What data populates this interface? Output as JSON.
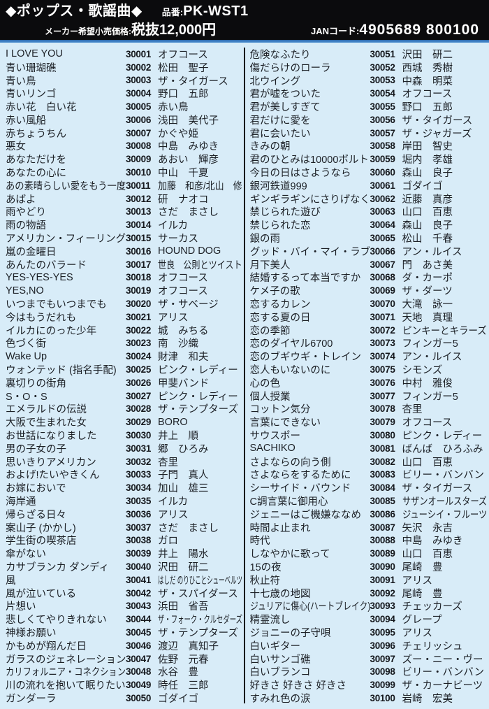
{
  "header": {
    "category": "◆ポップス・歌謡曲◆",
    "product_label": "品番:",
    "product_code": "PK-WST1",
    "price_label": "メーカー希望小売価格:",
    "price_value": "税抜12,000円",
    "jan_label": "JANコード:",
    "jan_value": "4905689 800100"
  },
  "colors": {
    "header_bg": "#0b0b0d",
    "page_bg": "#d8ecf8",
    "rule_blue": "#3a7cc2",
    "text": "#1c2026"
  },
  "songs": [
    {
      "title": "I LOVE YOU",
      "code": "30001",
      "artist": "オフコース"
    },
    {
      "title": "青い珊瑚礁",
      "code": "30002",
      "artist": "松田　聖子"
    },
    {
      "title": "青い鳥",
      "code": "30003",
      "artist": "ザ・タイガース"
    },
    {
      "title": "青いリンゴ",
      "code": "30004",
      "artist": "野口　五郎"
    },
    {
      "title": "赤い花　白い花",
      "code": "30005",
      "artist": "赤い鳥"
    },
    {
      "title": "赤い風船",
      "code": "30006",
      "artist": "浅田　美代子"
    },
    {
      "title": "赤ちょうちん",
      "code": "30007",
      "artist": "かぐや姫"
    },
    {
      "title": "悪女",
      "code": "30008",
      "artist": "中島　みゆき"
    },
    {
      "title": "あなただけを",
      "code": "30009",
      "artist": "あおい　輝彦"
    },
    {
      "title": "あなたの心に",
      "code": "30010",
      "artist": "中山　千夏"
    },
    {
      "title": "あの素晴らしい愛をもう一度",
      "code": "30011",
      "artist": "加藤　和彦/北山　修"
    },
    {
      "title": "あばよ",
      "code": "30012",
      "artist": "研　ナオコ"
    },
    {
      "title": "雨やどり",
      "code": "30013",
      "artist": "さだ　まさし"
    },
    {
      "title": "雨の物語",
      "code": "30014",
      "artist": "イルカ"
    },
    {
      "title": "アメリカン・フィーリング",
      "code": "30015",
      "artist": "サーカス"
    },
    {
      "title": "嵐の金曜日",
      "code": "30016",
      "artist": "HOUND DOG"
    },
    {
      "title": "あんたのバラード",
      "code": "30017",
      "artist": "世良　公則とツイスト"
    },
    {
      "title": "YES-YES-YES",
      "code": "30018",
      "artist": "オフコース"
    },
    {
      "title": "YES,NO",
      "code": "30019",
      "artist": "オフコース"
    },
    {
      "title": "いつまでもいつまでも",
      "code": "30020",
      "artist": "ザ・サベージ"
    },
    {
      "title": "今はもうだれも",
      "code": "30021",
      "artist": "アリス"
    },
    {
      "title": "イルカにのった少年",
      "code": "30022",
      "artist": "城　みちる"
    },
    {
      "title": "色づく街",
      "code": "30023",
      "artist": "南　沙織"
    },
    {
      "title": "Wake Up",
      "code": "30024",
      "artist": "財津　和夫"
    },
    {
      "title": "ウォンテッド (指名手配)",
      "code": "30025",
      "artist": "ピンク・レディー"
    },
    {
      "title": "裏切りの街角",
      "code": "30026",
      "artist": "甲斐バンド"
    },
    {
      "title": "S・O・S",
      "code": "30027",
      "artist": "ピンク・レディー"
    },
    {
      "title": "エメラルドの伝説",
      "code": "30028",
      "artist": "ザ・テンプターズ"
    },
    {
      "title": "大阪で生まれた女",
      "code": "30029",
      "artist": "BORO"
    },
    {
      "title": "お世話になりました",
      "code": "30030",
      "artist": "井上　順"
    },
    {
      "title": "男の子女の子",
      "code": "30031",
      "artist": "郷　ひろみ"
    },
    {
      "title": "思いきりアメリカン",
      "code": "30032",
      "artist": "杏里"
    },
    {
      "title": "およげ!たいやきくん",
      "code": "30033",
      "artist": "子門　真人"
    },
    {
      "title": "お嫁においで",
      "code": "30034",
      "artist": "加山　雄三"
    },
    {
      "title": "海岸通",
      "code": "30035",
      "artist": "イルカ"
    },
    {
      "title": "帰らざる日々",
      "code": "30036",
      "artist": "アリス"
    },
    {
      "title": "案山子 (かかし)",
      "code": "30037",
      "artist": "さだ　まさし"
    },
    {
      "title": "学生街の喫茶店",
      "code": "30038",
      "artist": "ガロ"
    },
    {
      "title": "傘がない",
      "code": "30039",
      "artist": "井上　陽水"
    },
    {
      "title": "カサブランカ ダンディ",
      "code": "30040",
      "artist": "沢田　研二"
    },
    {
      "title": "風",
      "code": "30041",
      "artist": "はしだ のりひことシューベルツ"
    },
    {
      "title": "風が泣いている",
      "code": "30042",
      "artist": "ザ・スパイダース"
    },
    {
      "title": "片想い",
      "code": "30043",
      "artist": "浜田　省吾"
    },
    {
      "title": "悲しくてやりきれない",
      "code": "30044",
      "artist": "ザ・フォーク・クルセダーズ"
    },
    {
      "title": "神様お願い",
      "code": "30045",
      "artist": "ザ・テンプターズ"
    },
    {
      "title": "かもめが翔んだ日",
      "code": "30046",
      "artist": "渡辺　真知子"
    },
    {
      "title": "ガラスのジェネレーション",
      "code": "30047",
      "artist": "佐野　元春"
    },
    {
      "title": "カリフォルニア・コネクション",
      "code": "30048",
      "artist": "水谷　豊"
    },
    {
      "title": "川の流れを抱いて眠りたい",
      "code": "30049",
      "artist": "時任　三郎"
    },
    {
      "title": "ガンダーラ",
      "code": "30050",
      "artist": "ゴダイゴ"
    },
    {
      "title": "危険なふたり",
      "code": "30051",
      "artist": "沢田　研二"
    },
    {
      "title": "傷だらけのローラ",
      "code": "30052",
      "artist": "西城　秀樹"
    },
    {
      "title": "北ウイング",
      "code": "30053",
      "artist": "中森　明菜"
    },
    {
      "title": "君が嘘をついた",
      "code": "30054",
      "artist": "オフコース"
    },
    {
      "title": "君が美しすぎて",
      "code": "30055",
      "artist": "野口　五郎"
    },
    {
      "title": "君だけに愛を",
      "code": "30056",
      "artist": "ザ・タイガース"
    },
    {
      "title": "君に会いたい",
      "code": "30057",
      "artist": "ザ・ジャガーズ"
    },
    {
      "title": "きみの朝",
      "code": "30058",
      "artist": "岸田　智史"
    },
    {
      "title": "君のひとみは10000ボルト",
      "code": "30059",
      "artist": "堀内　孝雄"
    },
    {
      "title": "今日の日はさようなら",
      "code": "30060",
      "artist": "森山　良子"
    },
    {
      "title": "銀河鉄道999",
      "code": "30061",
      "artist": "ゴダイゴ"
    },
    {
      "title": "ギンギラギンにさりげなく",
      "code": "30062",
      "artist": "近藤　真彦"
    },
    {
      "title": "禁じられた遊び",
      "code": "30063",
      "artist": "山口　百恵"
    },
    {
      "title": "禁じられた恋",
      "code": "30064",
      "artist": "森山　良子"
    },
    {
      "title": "銀の雨",
      "code": "30065",
      "artist": "松山　千春"
    },
    {
      "title": "グッド・バイ・マイ・ラブ",
      "code": "30066",
      "artist": "アン・ルイス"
    },
    {
      "title": "月下美人",
      "code": "30067",
      "artist": "門　あさ美"
    },
    {
      "title": "結婚するって本当ですか",
      "code": "30068",
      "artist": "ダ・カーポ"
    },
    {
      "title": "ケメ子の歌",
      "code": "30069",
      "artist": "ザ・ダーツ"
    },
    {
      "title": "恋するカレン",
      "code": "30070",
      "artist": "大滝　詠一"
    },
    {
      "title": "恋する夏の日",
      "code": "30071",
      "artist": "天地　真理"
    },
    {
      "title": "恋の季節",
      "code": "30072",
      "artist": "ピンキーとキラーズ"
    },
    {
      "title": "恋のダイヤル6700",
      "code": "30073",
      "artist": "フィンガー5"
    },
    {
      "title": "恋のブギウギ・トレイン",
      "code": "30074",
      "artist": "アン・ルイス"
    },
    {
      "title": "恋人もいないのに",
      "code": "30075",
      "artist": "シモンズ"
    },
    {
      "title": "心の色",
      "code": "30076",
      "artist": "中村　雅俊"
    },
    {
      "title": "個人授業",
      "code": "30077",
      "artist": "フィンガー5"
    },
    {
      "title": "コットン気分",
      "code": "30078",
      "artist": "杏里"
    },
    {
      "title": "言葉にできない",
      "code": "30079",
      "artist": "オフコース"
    },
    {
      "title": "サウスポー",
      "code": "30080",
      "artist": "ピンク・レディー"
    },
    {
      "title": "SACHIKO",
      "code": "30081",
      "artist": "ばんば　ひろふみ"
    },
    {
      "title": "さよならの向う側",
      "code": "30082",
      "artist": "山口　百恵"
    },
    {
      "title": "さよならをするために",
      "code": "30083",
      "artist": "ビリー・バンバン"
    },
    {
      "title": "シーサイド・バウンド",
      "code": "30084",
      "artist": "ザ・タイガース"
    },
    {
      "title": "C調言葉に御用心",
      "code": "30085",
      "artist": "サザンオールスターズ"
    },
    {
      "title": "ジェニーはご機嫌ななめ",
      "code": "30086",
      "artist": "ジューシイ・フルーツ"
    },
    {
      "title": "時間よ止まれ",
      "code": "30087",
      "artist": "矢沢　永吉"
    },
    {
      "title": "時代",
      "code": "30088",
      "artist": "中島　みゆき"
    },
    {
      "title": "しなやかに歌って",
      "code": "30089",
      "artist": "山口　百恵"
    },
    {
      "title": "15の夜",
      "code": "30090",
      "artist": "尾崎　豊"
    },
    {
      "title": "秋止符",
      "code": "30091",
      "artist": "アリス"
    },
    {
      "title": "十七歳の地図",
      "code": "30092",
      "artist": "尾崎　豊"
    },
    {
      "title": "ジュリアに傷心(ハートブレイク)",
      "code": "30093",
      "artist": "チェッカーズ"
    },
    {
      "title": "精霊流し",
      "code": "30094",
      "artist": "グレープ"
    },
    {
      "title": "ジョニーの子守唄",
      "code": "30095",
      "artist": "アリス"
    },
    {
      "title": "白いギター",
      "code": "30096",
      "artist": "チェリッシュ"
    },
    {
      "title": "白いサンゴ礁",
      "code": "30097",
      "artist": "ズー・ニー・ヴー"
    },
    {
      "title": "白いブランコ",
      "code": "30098",
      "artist": "ビリー・バンバン"
    },
    {
      "title": "好きさ 好きさ 好きさ",
      "code": "30099",
      "artist": "ザ・カーナビーツ"
    },
    {
      "title": "すみれ色の涙",
      "code": "30100",
      "artist": "岩崎　宏美"
    }
  ]
}
